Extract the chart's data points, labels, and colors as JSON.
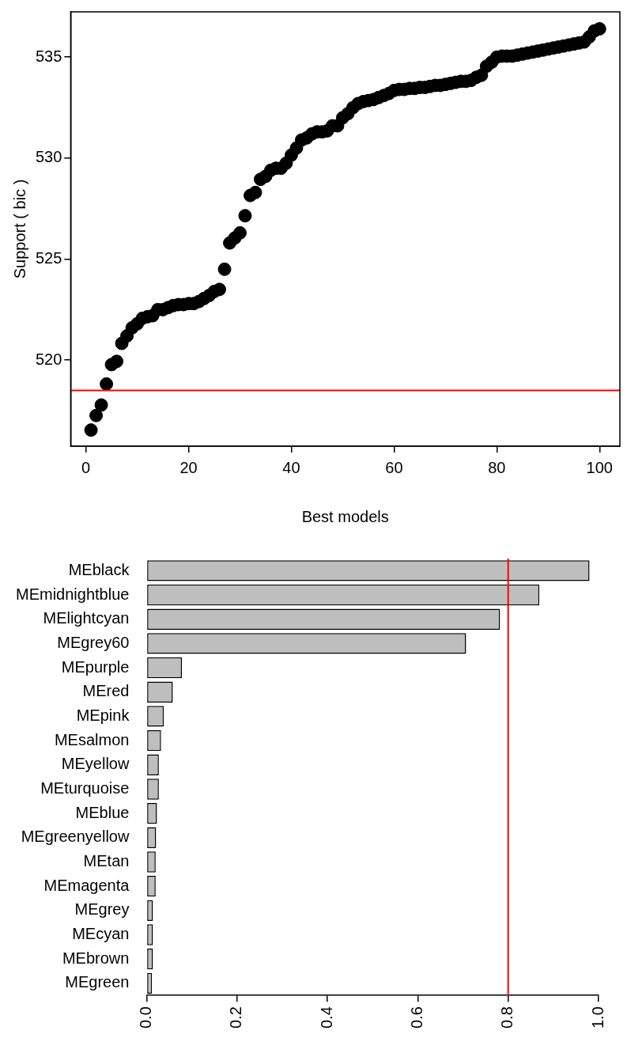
{
  "chart_data": [
    {
      "type": "scatter",
      "xlabel": "Best models",
      "ylabel": "Support ( bic )",
      "marker": "circle",
      "color": "#000000",
      "grid": false,
      "xlim": [
        -2.96,
        103.96
      ],
      "xticks": [
        0,
        20,
        40,
        60,
        80,
        100
      ],
      "ylim": [
        515.74,
        537.24
      ],
      "yticks": [
        520,
        525,
        530,
        535
      ],
      "x": [
        1,
        2,
        3,
        4,
        5,
        6,
        7,
        8,
        9,
        10,
        11,
        12,
        13,
        14,
        15,
        16,
        17,
        18,
        19,
        20,
        21,
        22,
        23,
        24,
        25,
        26,
        27,
        28,
        29,
        30,
        31,
        32,
        33,
        34,
        35,
        36,
        37,
        38,
        39,
        40,
        41,
        42,
        43,
        44,
        45,
        46,
        47,
        48,
        49,
        50,
        51,
        52,
        53,
        54,
        55,
        56,
        57,
        58,
        59,
        60,
        61,
        62,
        63,
        64,
        65,
        66,
        67,
        68,
        69,
        70,
        71,
        72,
        73,
        74,
        75,
        76,
        77,
        78,
        79,
        80,
        81,
        82,
        83,
        84,
        85,
        86,
        87,
        88,
        89,
        90,
        91,
        92,
        93,
        94,
        95,
        96,
        97,
        98,
        99,
        100
      ],
      "values": [
        516.54,
        517.26,
        517.78,
        518.82,
        519.78,
        519.94,
        520.83,
        521.2,
        521.6,
        521.8,
        522.07,
        522.15,
        522.2,
        522.5,
        522.5,
        522.6,
        522.7,
        522.75,
        522.75,
        522.8,
        522.8,
        522.9,
        523.05,
        523.2,
        523.4,
        523.5,
        524.5,
        525.8,
        526.05,
        526.3,
        527.15,
        528.15,
        528.3,
        528.95,
        529.1,
        529.4,
        529.5,
        529.5,
        529.75,
        530.15,
        530.5,
        530.9,
        531.0,
        531.2,
        531.3,
        531.3,
        531.35,
        531.6,
        531.6,
        532.0,
        532.2,
        532.5,
        532.7,
        532.8,
        532.85,
        532.9,
        533.0,
        533.1,
        533.2,
        533.35,
        533.4,
        533.4,
        533.45,
        533.45,
        533.5,
        533.5,
        533.55,
        533.6,
        533.6,
        533.65,
        533.7,
        533.75,
        533.8,
        533.8,
        533.85,
        534.0,
        534.1,
        534.55,
        534.75,
        535.0,
        535.05,
        535.05,
        535.05,
        535.1,
        535.15,
        535.2,
        535.25,
        535.3,
        535.35,
        535.4,
        535.45,
        535.5,
        535.55,
        535.6,
        535.65,
        535.7,
        535.75,
        536.0,
        536.3,
        536.4
      ],
      "ref_lines": [
        {
          "axis": "y",
          "value": 518.5,
          "color": "#ff0000"
        }
      ]
    },
    {
      "type": "bar",
      "orientation": "horizontal",
      "color": "#bebebe",
      "grid": false,
      "categories": [
        "MEblack",
        "MEmidnightblue",
        "MElightcyan",
        "MEgrey60",
        "MEpurple",
        "MEred",
        "MEpink",
        "MEsalmon",
        "MEyellow",
        "MEturquoise",
        "MEblue",
        "MEgreenyellow",
        "MEtan",
        "MEmagenta",
        "MEgrey",
        "MEcyan",
        "MEbrown",
        "MEgreen"
      ],
      "values": [
        0.98,
        0.869,
        0.782,
        0.707,
        0.078,
        0.058,
        0.038,
        0.032,
        0.027,
        0.027,
        0.023,
        0.021,
        0.02,
        0.02,
        0.014,
        0.014,
        0.014,
        0.012
      ],
      "xlim": [
        0,
        1
      ],
      "xticks": [
        {
          "value": 0,
          "label": "0.0"
        },
        0.2,
        0.4,
        0.6,
        0.8,
        {
          "value": 1,
          "label": "1.0"
        }
      ],
      "ref_lines": [
        {
          "axis": "x",
          "value": 0.8,
          "color": "#ff0000"
        }
      ]
    }
  ]
}
